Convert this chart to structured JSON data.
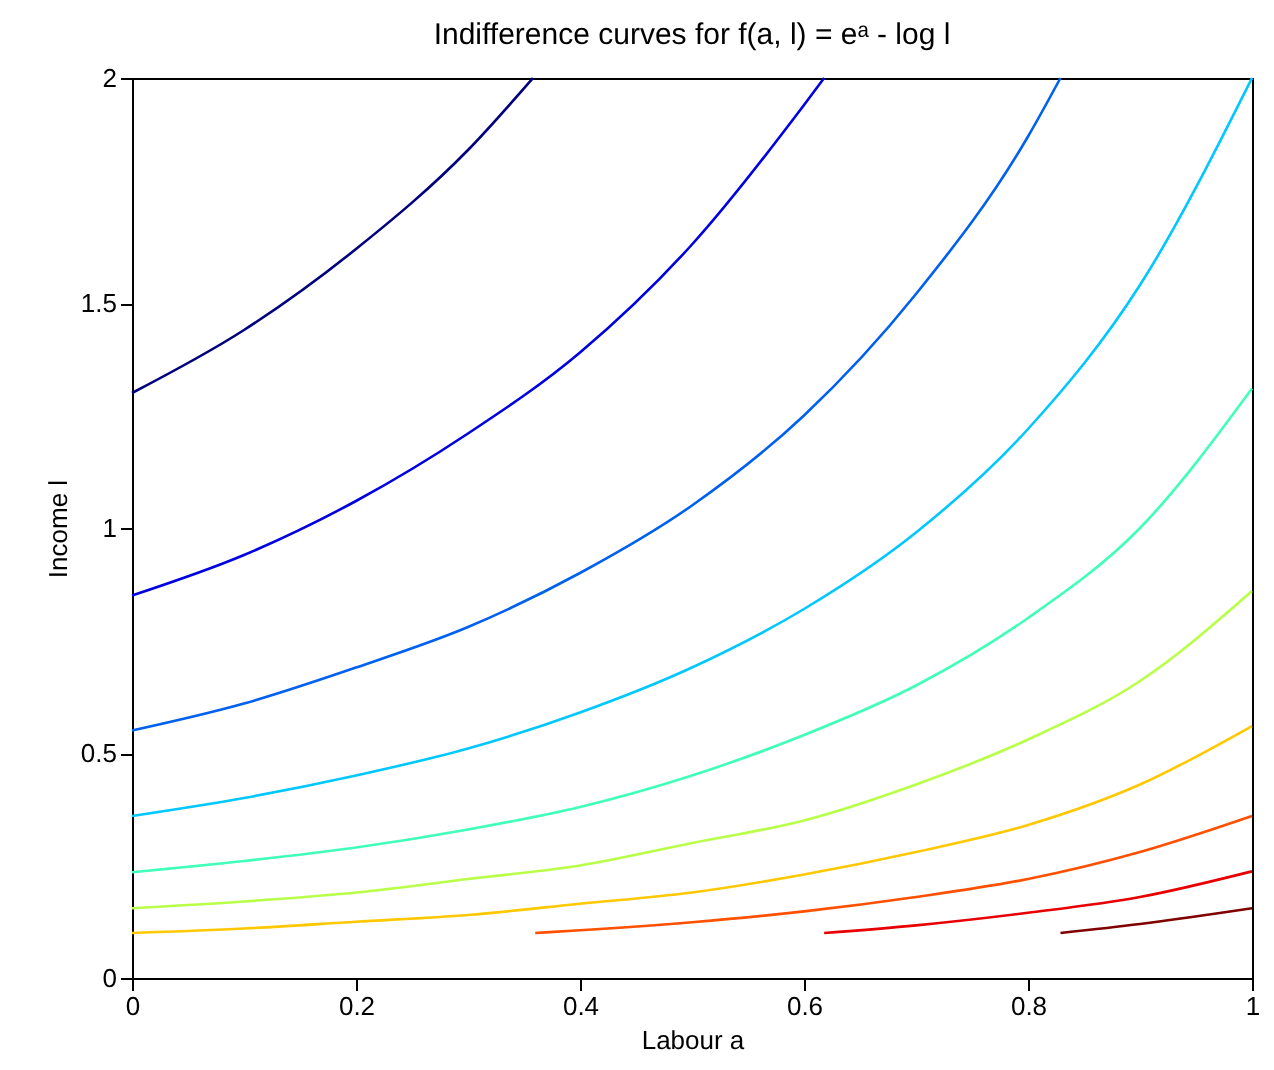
{
  "chart_data": {
    "type": "line",
    "title": "Indifference curves for f(a, l) = eᵃ - log l",
    "xlabel": "Labour a",
    "ylabel": "Income l",
    "xlim": [
      0,
      1
    ],
    "ylim": [
      0,
      2
    ],
    "xticks": [
      0,
      0.2,
      0.4,
      0.6,
      0.8,
      1
    ],
    "yticks": [
      0,
      0.5,
      1,
      1.5,
      2
    ],
    "grid": false,
    "legend": false,
    "marker": "none",
    "line_style": "solid",
    "series": [
      {
        "color": "#00007f",
        "x": [
          0,
          0.1,
          0.2,
          0.3,
          0.358
        ],
        "values": [
          1.3,
          1.44,
          1.62,
          1.84,
          2.0
        ]
      },
      {
        "color": "#0000e0",
        "x": [
          0,
          0.1,
          0.2,
          0.3,
          0.4,
          0.5,
          0.6,
          0.618
        ],
        "values": [
          0.85,
          0.94,
          1.06,
          1.21,
          1.39,
          1.63,
          1.94,
          2.0
        ]
      },
      {
        "color": "#0060f0",
        "x": [
          0,
          0.1,
          0.2,
          0.3,
          0.4,
          0.5,
          0.6,
          0.7,
          0.8,
          0.829
        ],
        "values": [
          0.55,
          0.61,
          0.69,
          0.78,
          0.9,
          1.05,
          1.25,
          1.52,
          1.87,
          2.0
        ]
      },
      {
        "color": "#00c8ff",
        "x": [
          0,
          0.1,
          0.2,
          0.3,
          0.4,
          0.5,
          0.6,
          0.7,
          0.8,
          0.9,
          1
        ],
        "values": [
          0.36,
          0.4,
          0.45,
          0.51,
          0.59,
          0.69,
          0.82,
          0.99,
          1.22,
          1.54,
          2.0
        ]
      },
      {
        "color": "#40ffb8",
        "x": [
          0,
          0.1,
          0.2,
          0.3,
          0.4,
          0.5,
          0.6,
          0.7,
          0.8,
          0.9,
          1
        ],
        "values": [
          0.235,
          0.26,
          0.29,
          0.33,
          0.38,
          0.45,
          0.54,
          0.65,
          0.8,
          1.0,
          1.31
        ]
      },
      {
        "color": "#b8ff48",
        "x": [
          0,
          0.1,
          0.2,
          0.3,
          0.4,
          0.5,
          0.6,
          0.7,
          0.8,
          0.9,
          1
        ],
        "values": [
          0.155,
          0.17,
          0.19,
          0.22,
          0.25,
          0.3,
          0.35,
          0.43,
          0.53,
          0.66,
          0.86
        ]
      },
      {
        "color": "#ffc800",
        "x": [
          0,
          0.1,
          0.2,
          0.3,
          0.4,
          0.5,
          0.6,
          0.7,
          0.8,
          0.9,
          1
        ],
        "values": [
          0.1,
          0.11,
          0.125,
          0.14,
          0.165,
          0.19,
          0.23,
          0.28,
          0.34,
          0.43,
          0.56
        ]
      },
      {
        "color": "#ff5000",
        "x": [
          0.36,
          0.4,
          0.5,
          0.6,
          0.7,
          0.8,
          0.9,
          1
        ],
        "values": [
          0.1,
          0.106,
          0.124,
          0.148,
          0.18,
          0.22,
          0.28,
          0.36
        ]
      },
      {
        "color": "#e80000",
        "x": [
          0.618,
          0.7,
          0.8,
          0.9,
          1
        ],
        "values": [
          0.1,
          0.117,
          0.145,
          0.18,
          0.237
        ]
      },
      {
        "color": "#800000",
        "x": [
          0.829,
          0.9,
          1
        ],
        "values": [
          0.1,
          0.12,
          0.155
        ]
      }
    ]
  }
}
